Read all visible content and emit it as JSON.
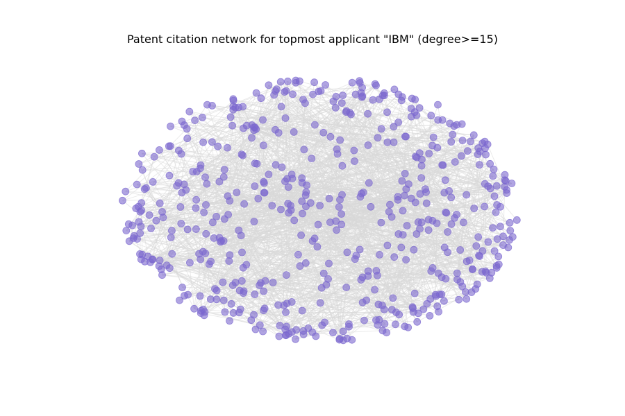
{
  "figure": {
    "title": "Patent citation network for topmost applicant \"IBM\" (degree>=15)"
  },
  "network": {
    "layout": "spring (ellipse-shaped cloud)",
    "node_color": "#7b68cf",
    "node_opacity": 0.6,
    "edge_color": "#d9d9d9",
    "edge_opacity": 0.55,
    "directed": true,
    "approx_node_count": 560,
    "approx_edge_count": 1400,
    "axes_visible": false
  }
}
